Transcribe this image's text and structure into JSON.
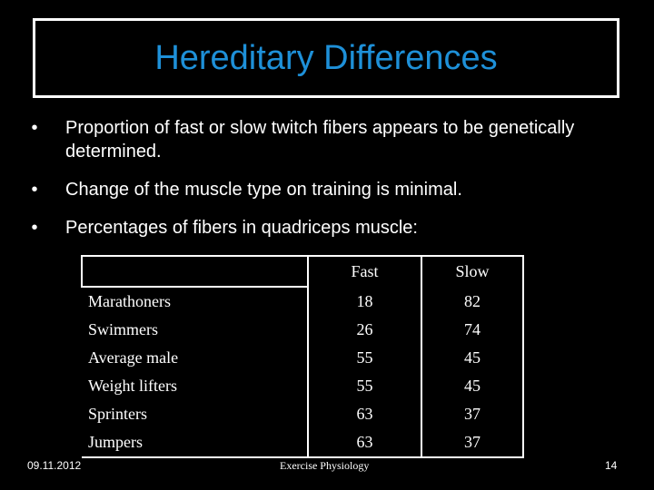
{
  "slide": {
    "title": "Hereditary Differences",
    "bullets": [
      "Proportion of fast or slow twitch fibers appears to be genetically determined.",
      "Change of the muscle type on training is minimal.",
      "Percentages of fibers in quadriceps muscle:"
    ],
    "bullet_glyph": "•"
  },
  "table": {
    "headers": [
      "",
      "Fast",
      "Slow"
    ],
    "rows": [
      {
        "name": "Marathoners",
        "fast": "18",
        "slow": "82"
      },
      {
        "name": "Swimmers",
        "fast": "26",
        "slow": "74"
      },
      {
        "name": "Average male",
        "fast": "55",
        "slow": "45"
      },
      {
        "name": "Weight lifters",
        "fast": "55",
        "slow": "45"
      },
      {
        "name": "Sprinters",
        "fast": "63",
        "slow": "37"
      },
      {
        "name": "Jumpers",
        "fast": "63",
        "slow": "37"
      }
    ]
  },
  "footer": {
    "date": "09.11.2012",
    "center": "Exercise Physiology",
    "page": "14"
  },
  "colors": {
    "title": "#1e90d8",
    "background": "#000000",
    "text": "#ffffff"
  }
}
